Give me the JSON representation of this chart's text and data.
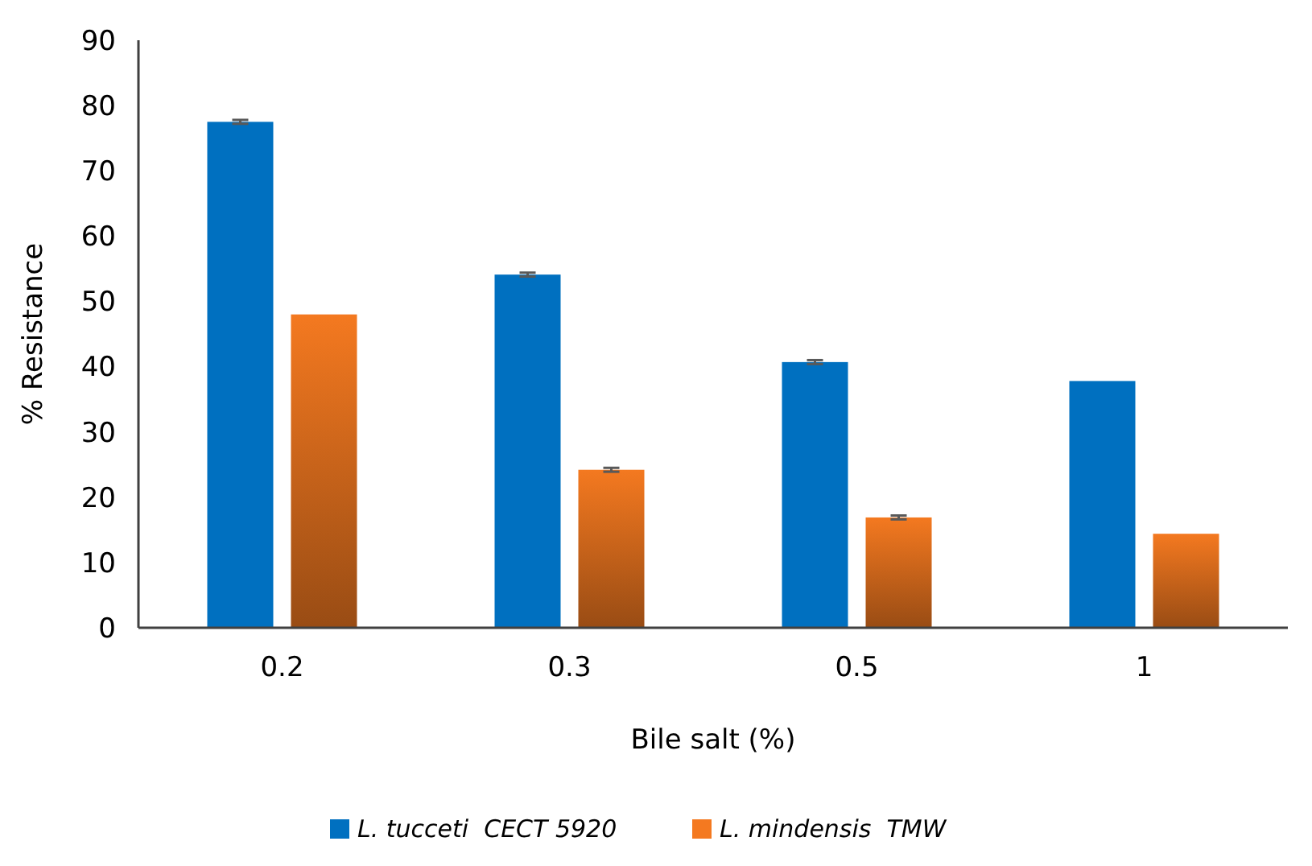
{
  "chart_data": {
    "type": "bar",
    "xlabel": "Bile salt (%)",
    "ylabel": "% Resistance",
    "categories": [
      "0.2",
      "0.3",
      "0.5",
      "1"
    ],
    "series": [
      {
        "name": "L. tucceti  CECT 5920",
        "color": "#0070c0",
        "values": [
          77.5,
          54.1,
          40.7,
          37.8
        ],
        "errors": [
          0.3,
          0.3,
          0.3,
          null
        ]
      },
      {
        "name": "L. mindensis  TMW",
        "color": "#f47920",
        "values": [
          48.0,
          24.2,
          16.9,
          14.4
        ],
        "errors": [
          null,
          0.3,
          0.3,
          null
        ]
      }
    ],
    "ylim": [
      0,
      90
    ],
    "yticks": [
      0,
      10,
      20,
      30,
      40,
      50,
      60,
      70,
      80,
      90
    ],
    "grid": false,
    "legend": "bottom"
  }
}
